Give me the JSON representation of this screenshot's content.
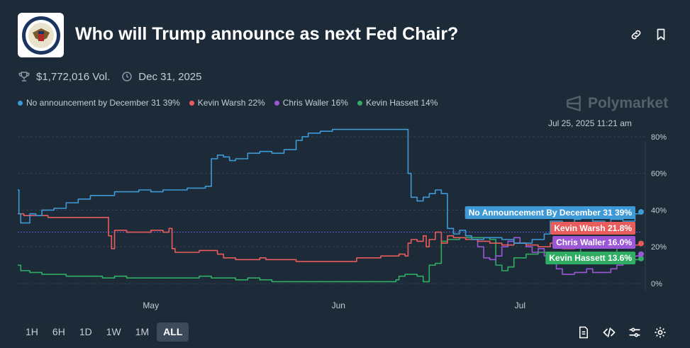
{
  "header": {
    "title": "Who will Trump announce as next Fed Chair?",
    "volume": "$1,772,016 Vol.",
    "end_date": "Dec 31, 2025",
    "icons": [
      "link-icon",
      "bookmark-icon",
      "trophy-icon",
      "clock-icon"
    ]
  },
  "legend": [
    {
      "label": "No announcement by December 31 39%",
      "color": "#3d9ad6"
    },
    {
      "label": "Kevin Warsh 22%",
      "color": "#e85c5c"
    },
    {
      "label": "Chris Waller 16%",
      "color": "#9b57d6"
    },
    {
      "label": "Kevin Hassett 14%",
      "color": "#30ad63"
    }
  ],
  "brand": "Polymarket",
  "timestamp": "Jul 25, 2025 11:21 am",
  "range_buttons": [
    "1H",
    "6H",
    "1D",
    "1W",
    "1M",
    "ALL"
  ],
  "active_range": "ALL",
  "tool_icons": [
    "document-icon",
    "code-icon",
    "sliders-icon",
    "gear-icon"
  ],
  "colors": {
    "background": "#1d2b39",
    "grid": "#33424f",
    "text": "#c4ccd6"
  },
  "chart_data": {
    "type": "line",
    "x_unit": "days since Apr 9, 2025",
    "x_ticks": [
      {
        "x": 22,
        "label": "May"
      },
      {
        "x": 53,
        "label": "Jun"
      },
      {
        "x": 83,
        "label": "Jul"
      }
    ],
    "ylim": [
      0,
      85
    ],
    "y_ticks": [
      0,
      20,
      40,
      60,
      80
    ],
    "y_tick_labels": [
      "0%",
      "20%",
      "40%",
      "60%",
      "80%"
    ],
    "reference_line": 28,
    "series": [
      {
        "name": "No announcement by December 31",
        "end_label": "No Announcement By December 31 39%",
        "color": "#3d9ad6",
        "points": [
          [
            0,
            51
          ],
          [
            0.2,
            38
          ],
          [
            0.5,
            33
          ],
          [
            1.5,
            33
          ],
          [
            2,
            38
          ],
          [
            3,
            37
          ],
          [
            4,
            40
          ],
          [
            6,
            41
          ],
          [
            8,
            44
          ],
          [
            10,
            46
          ],
          [
            12,
            48
          ],
          [
            14,
            48
          ],
          [
            16,
            50
          ],
          [
            18,
            50
          ],
          [
            20,
            51
          ],
          [
            22,
            50
          ],
          [
            24,
            51
          ],
          [
            28,
            52
          ],
          [
            30,
            52
          ],
          [
            31,
            53
          ],
          [
            32,
            68
          ],
          [
            33,
            70
          ],
          [
            34,
            69
          ],
          [
            35,
            67
          ],
          [
            36,
            68
          ],
          [
            38,
            71
          ],
          [
            40,
            72
          ],
          [
            42,
            71
          ],
          [
            44,
            73
          ],
          [
            46,
            78
          ],
          [
            47,
            80
          ],
          [
            48,
            82
          ],
          [
            50,
            83
          ],
          [
            52,
            84
          ],
          [
            60,
            84
          ],
          [
            63,
            84
          ],
          [
            64,
            84
          ],
          [
            64.5,
            60
          ],
          [
            65,
            47
          ],
          [
            66,
            45
          ],
          [
            67,
            47
          ],
          [
            68,
            49
          ],
          [
            69,
            51
          ],
          [
            70,
            49
          ],
          [
            71,
            30
          ],
          [
            72,
            27
          ],
          [
            73,
            29
          ],
          [
            74,
            26
          ],
          [
            75,
            24
          ],
          [
            77,
            25
          ],
          [
            80,
            24
          ],
          [
            82,
            22
          ],
          [
            85,
            24
          ],
          [
            87,
            27
          ],
          [
            88,
            34
          ],
          [
            90,
            33
          ],
          [
            92,
            35
          ],
          [
            93,
            37
          ],
          [
            95,
            34
          ],
          [
            97,
            32
          ],
          [
            98,
            35
          ],
          [
            100,
            34
          ],
          [
            102,
            38
          ],
          [
            103,
            39
          ]
        ]
      },
      {
        "name": "Kevin Warsh",
        "end_label": "Kevin Warsh 21.8%",
        "color": "#e85c5c",
        "points": [
          [
            0,
            38
          ],
          [
            1,
            37
          ],
          [
            3,
            37
          ],
          [
            5,
            36
          ],
          [
            12,
            36
          ],
          [
            14,
            36
          ],
          [
            15,
            26
          ],
          [
            15.5,
            19
          ],
          [
            16,
            29
          ],
          [
            18,
            28
          ],
          [
            20,
            28
          ],
          [
            22,
            29
          ],
          [
            24,
            28
          ],
          [
            25,
            30
          ],
          [
            25.5,
            19
          ],
          [
            26,
            17
          ],
          [
            28,
            17
          ],
          [
            30,
            18
          ],
          [
            32,
            18
          ],
          [
            33,
            16
          ],
          [
            34,
            14
          ],
          [
            36,
            13
          ],
          [
            38,
            13
          ],
          [
            40,
            14
          ],
          [
            41,
            13
          ],
          [
            44,
            13
          ],
          [
            46,
            12
          ],
          [
            50,
            12
          ],
          [
            52,
            12
          ],
          [
            54,
            12
          ],
          [
            56,
            14
          ],
          [
            58,
            14
          ],
          [
            60,
            15
          ],
          [
            62,
            15
          ],
          [
            63,
            16
          ],
          [
            64,
            15
          ],
          [
            64.5,
            22
          ],
          [
            65,
            24
          ],
          [
            66,
            23
          ],
          [
            67,
            26
          ],
          [
            67.5,
            20
          ],
          [
            68,
            24
          ],
          [
            69,
            28
          ],
          [
            70,
            22
          ],
          [
            71,
            26
          ],
          [
            72,
            25
          ],
          [
            74,
            24
          ],
          [
            76,
            23
          ],
          [
            78,
            22
          ],
          [
            80,
            21
          ],
          [
            82,
            22
          ],
          [
            84,
            21
          ],
          [
            86,
            20
          ],
          [
            88,
            22
          ],
          [
            90,
            19
          ],
          [
            92,
            21
          ],
          [
            94,
            22
          ],
          [
            96,
            21
          ],
          [
            98,
            20
          ],
          [
            100,
            21
          ],
          [
            102,
            21
          ],
          [
            103,
            21.8
          ]
        ]
      },
      {
        "name": "Chris Waller",
        "end_label": "Chris Waller 16.0%",
        "color": "#9b57d6",
        "points": [
          [
            75,
            24
          ],
          [
            76,
            20
          ],
          [
            77,
            14
          ],
          [
            78,
            13
          ],
          [
            79,
            15
          ],
          [
            80,
            20
          ],
          [
            81,
            23
          ],
          [
            82,
            25
          ],
          [
            83,
            22
          ],
          [
            84,
            20
          ],
          [
            85,
            17
          ],
          [
            86,
            19
          ],
          [
            87,
            15
          ],
          [
            88,
            12
          ],
          [
            89,
            8
          ],
          [
            90,
            5
          ],
          [
            92,
            6
          ],
          [
            94,
            8
          ],
          [
            95,
            6
          ],
          [
            97,
            6
          ],
          [
            98,
            8
          ],
          [
            99,
            10
          ],
          [
            100,
            13
          ],
          [
            101,
            14
          ],
          [
            102,
            15
          ],
          [
            103,
            16
          ]
        ]
      },
      {
        "name": "Kevin Hassett",
        "end_label": "Kevin Hassett 13.6%",
        "color": "#30ad63",
        "points": [
          [
            0,
            10
          ],
          [
            0.5,
            7
          ],
          [
            2,
            6
          ],
          [
            4,
            5
          ],
          [
            6,
            5
          ],
          [
            8,
            4
          ],
          [
            10,
            4
          ],
          [
            12,
            4
          ],
          [
            14,
            3
          ],
          [
            16,
            4
          ],
          [
            18,
            3
          ],
          [
            20,
            3
          ],
          [
            24,
            3
          ],
          [
            28,
            3
          ],
          [
            30,
            4
          ],
          [
            32,
            3
          ],
          [
            34,
            3
          ],
          [
            36,
            2
          ],
          [
            38,
            3
          ],
          [
            40,
            2
          ],
          [
            42,
            1
          ],
          [
            46,
            1
          ],
          [
            50,
            1
          ],
          [
            54,
            1
          ],
          [
            58,
            1
          ],
          [
            60,
            1
          ],
          [
            62,
            1
          ],
          [
            62.5,
            2
          ],
          [
            63,
            4
          ],
          [
            64,
            5
          ],
          [
            65,
            5
          ],
          [
            66,
            4
          ],
          [
            67,
            1
          ],
          [
            68,
            10
          ],
          [
            69,
            11
          ],
          [
            70,
            23
          ],
          [
            71,
            24
          ],
          [
            73,
            25
          ],
          [
            76,
            25
          ],
          [
            78,
            24
          ],
          [
            79,
            10
          ],
          [
            80,
            7
          ],
          [
            81,
            9
          ],
          [
            82,
            14
          ],
          [
            84,
            16
          ],
          [
            86,
            17
          ],
          [
            88,
            16
          ],
          [
            89,
            14
          ],
          [
            90,
            12
          ],
          [
            91,
            13
          ],
          [
            92,
            14
          ],
          [
            93,
            22
          ],
          [
            94,
            23
          ],
          [
            95,
            24
          ],
          [
            96,
            21
          ],
          [
            97,
            20
          ],
          [
            99,
            15
          ],
          [
            100,
            14
          ],
          [
            101,
            12
          ],
          [
            102,
            13
          ],
          [
            103,
            13.6
          ]
        ]
      }
    ]
  }
}
